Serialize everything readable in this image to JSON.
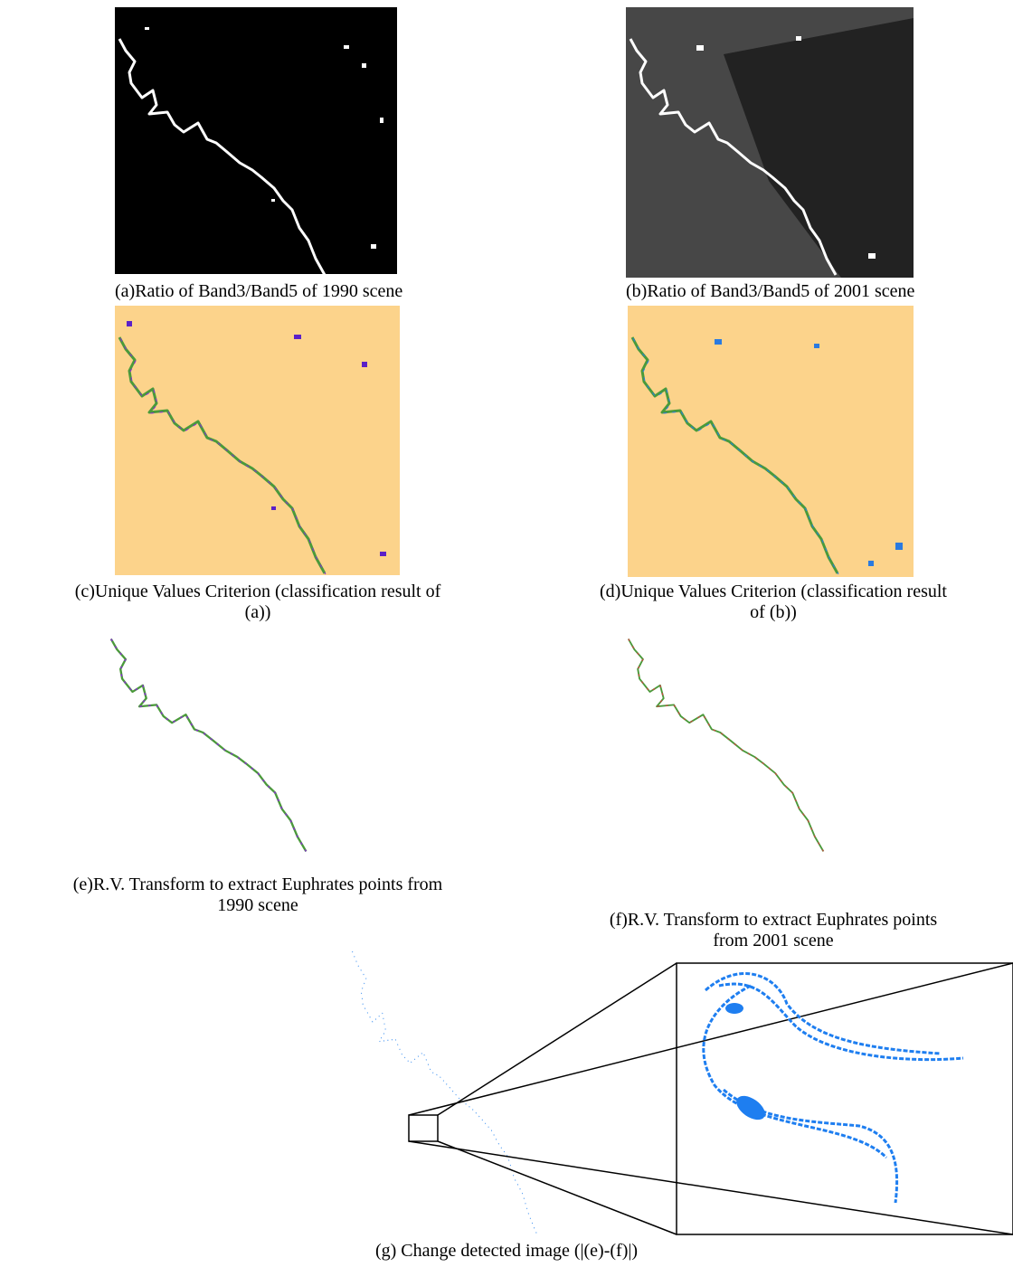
{
  "figure": {
    "panels": [
      {
        "caption": [
          "(a)Ratio of Band3/Band5 of 1990 scene"
        ]
      },
      {
        "caption": [
          "(b)Ratio of Band3/Band5 of 2001 scene"
        ]
      },
      {
        "caption": [
          "(c)Unique Values Criterion (classification result of",
          "(a))"
        ]
      },
      {
        "caption": [
          "(d)Unique Values Criterion (classification result",
          "of (b))"
        ]
      },
      {
        "caption": [
          "(e)R.V. Transform to extract Euphrates points from",
          "1990 scene"
        ]
      },
      {
        "caption": [
          "(f)R.V. Transform to extract Euphrates points",
          "from 2001 scene"
        ]
      },
      {
        "caption": [
          "(g) Change detected image (|(e)-(f)|)"
        ]
      }
    ]
  }
}
